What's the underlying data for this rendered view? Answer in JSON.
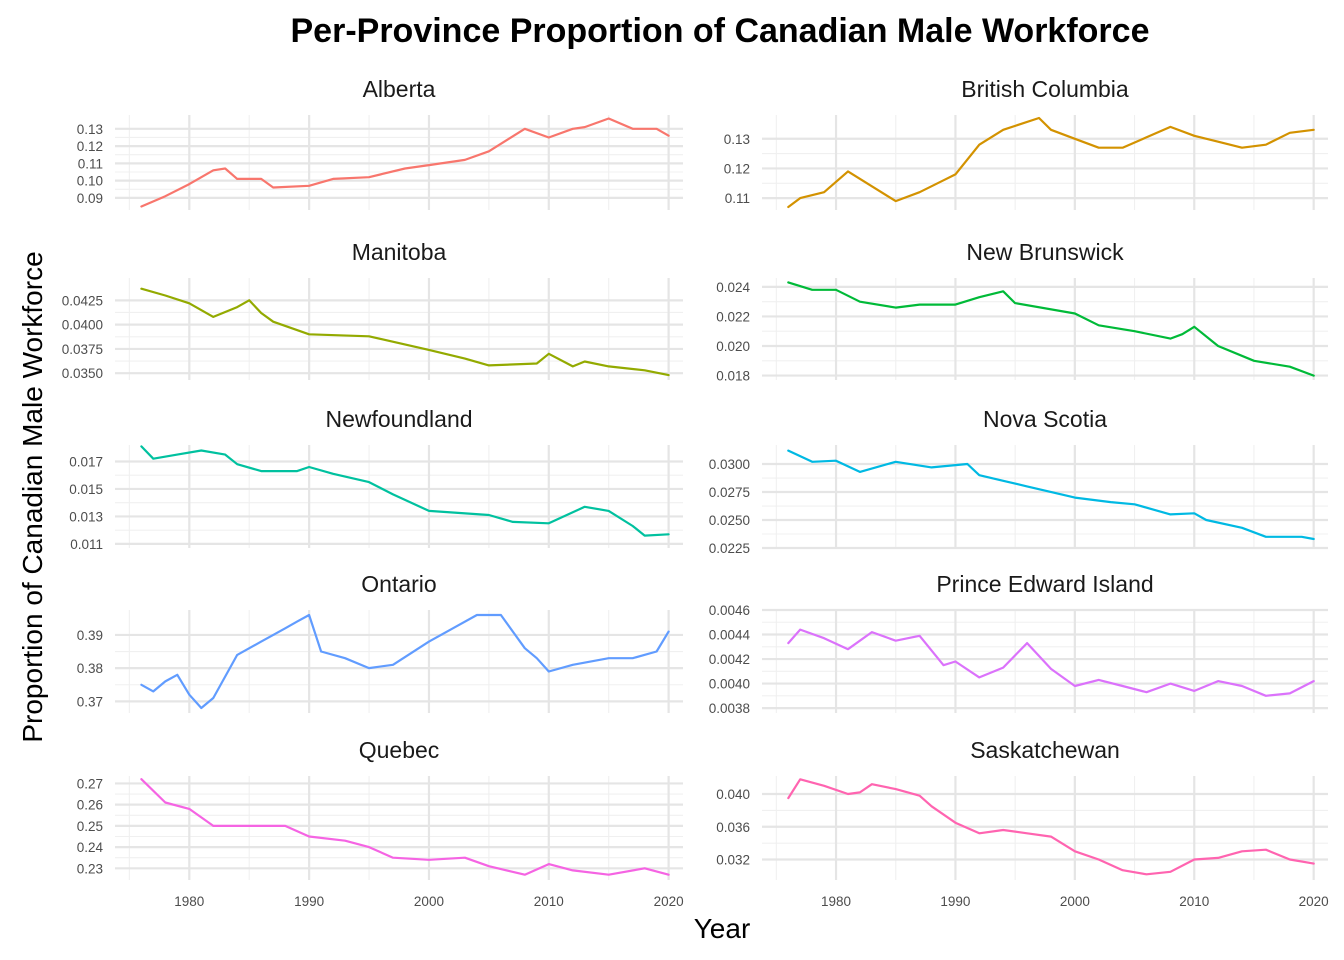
{
  "chart_data": {
    "type": "line",
    "title": "Per-Province Proportion of Canadian Male Workforce",
    "xlabel": "Year",
    "ylabel": "Proportion of Canadian Male Workforce",
    "grid": true,
    "legend": "none",
    "x_range": [
      1976,
      2020
    ],
    "x_ticks": [
      "1980",
      "1990",
      "2000",
      "2010",
      "2020"
    ],
    "facets": [
      {
        "name": "Alberta",
        "color": "#F8766D",
        "ylim": [
          0.083,
          0.138
        ],
        "y_ticks": [
          0.09,
          0.1,
          0.11,
          0.12,
          0.13
        ],
        "y_tick_labels": [
          "0.09",
          "0.10",
          "0.11",
          "0.12",
          "0.13"
        ],
        "x": [
          1976,
          1978,
          1980,
          1982,
          1983,
          1984,
          1986,
          1987,
          1990,
          1992,
          1995,
          1998,
          2000,
          2003,
          2005,
          2008,
          2010,
          2012,
          2013,
          2015,
          2017,
          2019,
          2020
        ],
        "values": [
          0.085,
          0.091,
          0.098,
          0.106,
          0.107,
          0.101,
          0.101,
          0.096,
          0.097,
          0.101,
          0.102,
          0.107,
          0.109,
          0.112,
          0.117,
          0.13,
          0.125,
          0.13,
          0.131,
          0.136,
          0.13,
          0.13,
          0.126
        ]
      },
      {
        "name": "British Columbia",
        "color": "#D39200",
        "ylim": [
          0.106,
          0.138
        ],
        "y_ticks": [
          0.11,
          0.12,
          0.13
        ],
        "y_tick_labels": [
          "0.11",
          "0.12",
          "0.13"
        ],
        "x": [
          1976,
          1977,
          1979,
          1981,
          1983,
          1985,
          1987,
          1989,
          1990,
          1992,
          1994,
          1997,
          1998,
          2000,
          2002,
          2004,
          2008,
          2010,
          2012,
          2014,
          2016,
          2018,
          2020
        ],
        "values": [
          0.107,
          0.11,
          0.112,
          0.119,
          0.114,
          0.109,
          0.112,
          0.116,
          0.118,
          0.128,
          0.133,
          0.137,
          0.133,
          0.13,
          0.127,
          0.127,
          0.134,
          0.131,
          0.129,
          0.127,
          0.128,
          0.132,
          0.133
        ]
      },
      {
        "name": "Manitoba",
        "color": "#93AA00",
        "ylim": [
          0.0343,
          0.0448
        ],
        "y_ticks": [
          0.035,
          0.0375,
          0.04,
          0.0425
        ],
        "y_tick_labels": [
          "0.0350",
          "0.0375",
          "0.0400",
          "0.0425"
        ],
        "x": [
          1976,
          1978,
          1980,
          1982,
          1984,
          1985,
          1986,
          1987,
          1990,
          1995,
          2000,
          2003,
          2005,
          2009,
          2010,
          2012,
          2013,
          2015,
          2018,
          2020
        ],
        "values": [
          0.0437,
          0.043,
          0.0422,
          0.0408,
          0.0418,
          0.0425,
          0.0412,
          0.0403,
          0.039,
          0.0388,
          0.0374,
          0.0365,
          0.0358,
          0.036,
          0.037,
          0.0357,
          0.0362,
          0.0357,
          0.0353,
          0.0348
        ]
      },
      {
        "name": "New Brunswick",
        "color": "#00BA38",
        "ylim": [
          0.0177,
          0.0246
        ],
        "y_ticks": [
          0.018,
          0.02,
          0.022,
          0.024
        ],
        "y_tick_labels": [
          "0.018",
          "0.020",
          "0.022",
          "0.024"
        ],
        "x": [
          1976,
          1978,
          1980,
          1982,
          1985,
          1987,
          1990,
          1992,
          1994,
          1995,
          2000,
          2002,
          2005,
          2008,
          2009,
          2010,
          2012,
          2015,
          2018,
          2020
        ],
        "values": [
          0.0243,
          0.0238,
          0.0238,
          0.023,
          0.0226,
          0.0228,
          0.0228,
          0.0233,
          0.0237,
          0.0229,
          0.0222,
          0.0214,
          0.021,
          0.0205,
          0.0208,
          0.0213,
          0.02,
          0.019,
          0.0186,
          0.018
        ]
      },
      {
        "name": "Newfoundland",
        "color": "#00C19F",
        "ylim": [
          0.0107,
          0.0182
        ],
        "y_ticks": [
          0.011,
          0.013,
          0.015,
          0.017
        ],
        "y_tick_labels": [
          "0.011",
          "0.013",
          "0.015",
          "0.017"
        ],
        "x": [
          1976,
          1977,
          1979,
          1981,
          1983,
          1984,
          1986,
          1989,
          1990,
          1992,
          1995,
          1997,
          1998,
          2000,
          2005,
          2007,
          2010,
          2012,
          2013,
          2015,
          2017,
          2018,
          2020
        ],
        "values": [
          0.0181,
          0.0172,
          0.0175,
          0.0178,
          0.0175,
          0.0168,
          0.0163,
          0.0163,
          0.0166,
          0.0161,
          0.0155,
          0.0146,
          0.0142,
          0.0134,
          0.0131,
          0.0126,
          0.0125,
          0.0133,
          0.0137,
          0.0134,
          0.0123,
          0.0116,
          0.0117
        ]
      },
      {
        "name": "Nova Scotia",
        "color": "#00B9E3",
        "ylim": [
          0.0225,
          0.0317
        ],
        "y_ticks": [
          0.0225,
          0.025,
          0.0275,
          0.03
        ],
        "y_tick_labels": [
          "0.0225",
          "0.0250",
          "0.0275",
          "0.0300"
        ],
        "x": [
          1976,
          1978,
          1980,
          1982,
          1985,
          1988,
          1991,
          1992,
          1994,
          1996,
          2000,
          2003,
          2005,
          2008,
          2010,
          2011,
          2014,
          2016,
          2017,
          2019,
          2020
        ],
        "values": [
          0.0312,
          0.0302,
          0.0303,
          0.0293,
          0.0302,
          0.0297,
          0.03,
          0.029,
          0.0285,
          0.028,
          0.027,
          0.0266,
          0.0264,
          0.0255,
          0.0256,
          0.025,
          0.0243,
          0.0235,
          0.0235,
          0.0235,
          0.0233
        ]
      },
      {
        "name": "Ontario",
        "color": "#619CFF",
        "ylim": [
          0.3665,
          0.3975
        ],
        "y_ticks": [
          0.37,
          0.38,
          0.39
        ],
        "y_tick_labels": [
          "0.37",
          "0.38",
          "0.39"
        ],
        "x": [
          1976,
          1977,
          1978,
          1979,
          1980,
          1981,
          1982,
          1984,
          1986,
          1988,
          1989,
          1990,
          1991,
          1993,
          1995,
          1997,
          2000,
          2002,
          2004,
          2006,
          2008,
          2009,
          2010,
          2012,
          2015,
          2017,
          2019,
          2020
        ],
        "values": [
          0.375,
          0.373,
          0.376,
          0.378,
          0.372,
          0.368,
          0.371,
          0.384,
          0.388,
          0.392,
          0.394,
          0.396,
          0.385,
          0.383,
          0.38,
          0.381,
          0.388,
          0.392,
          0.396,
          0.396,
          0.386,
          0.383,
          0.379,
          0.381,
          0.383,
          0.383,
          0.385,
          0.391
        ]
      },
      {
        "name": "Prince Edward Island",
        "color": "#DB72FB",
        "ylim": [
          0.00376,
          0.0046
        ],
        "y_ticks": [
          0.0038,
          0.004,
          0.0042,
          0.0044,
          0.0046
        ],
        "y_tick_labels": [
          "0.0038",
          "0.0040",
          "0.0042",
          "0.0044",
          "0.0046"
        ],
        "x": [
          1976,
          1977,
          1979,
          1981,
          1983,
          1985,
          1987,
          1989,
          1990,
          1992,
          1994,
          1996,
          1998,
          2000,
          2002,
          2004,
          2006,
          2008,
          2010,
          2012,
          2014,
          2016,
          2018,
          2020
        ],
        "values": [
          0.00433,
          0.00444,
          0.00437,
          0.00428,
          0.00442,
          0.00435,
          0.00439,
          0.00415,
          0.00418,
          0.00405,
          0.00413,
          0.00433,
          0.00412,
          0.00398,
          0.00403,
          0.00398,
          0.00393,
          0.004,
          0.00394,
          0.00402,
          0.00398,
          0.0039,
          0.00392,
          0.00402
        ]
      },
      {
        "name": "Quebec",
        "color": "#F564E3",
        "ylim": [
          0.2245,
          0.2735
        ],
        "y_ticks": [
          0.23,
          0.24,
          0.25,
          0.26,
          0.27
        ],
        "y_tick_labels": [
          "0.23",
          "0.24",
          "0.25",
          "0.26",
          "0.27"
        ],
        "x": [
          1976,
          1978,
          1980,
          1982,
          1985,
          1988,
          1990,
          1993,
          1995,
          1997,
          2000,
          2003,
          2005,
          2008,
          2010,
          2012,
          2015,
          2018,
          2020
        ],
        "values": [
          0.272,
          0.261,
          0.258,
          0.25,
          0.25,
          0.25,
          0.245,
          0.243,
          0.24,
          0.235,
          0.234,
          0.235,
          0.231,
          0.227,
          0.232,
          0.229,
          0.227,
          0.23,
          0.227
        ]
      },
      {
        "name": "Saskatchewan",
        "color": "#FF64B0",
        "ylim": [
          0.0295,
          0.0422
        ],
        "y_ticks": [
          0.032,
          0.036,
          0.04
        ],
        "y_tick_labels": [
          "0.032",
          "0.036",
          "0.040"
        ],
        "x": [
          1976,
          1977,
          1979,
          1981,
          1982,
          1983,
          1985,
          1987,
          1988,
          1990,
          1992,
          1994,
          1996,
          1998,
          2000,
          2002,
          2004,
          2006,
          2008,
          2010,
          2012,
          2014,
          2016,
          2018,
          2020
        ],
        "values": [
          0.0395,
          0.0418,
          0.041,
          0.04,
          0.0402,
          0.0412,
          0.0406,
          0.0398,
          0.0385,
          0.0365,
          0.0352,
          0.0356,
          0.0352,
          0.0348,
          0.033,
          0.032,
          0.0307,
          0.0302,
          0.0305,
          0.032,
          0.0322,
          0.033,
          0.0332,
          0.032,
          0.0315
        ]
      }
    ]
  }
}
